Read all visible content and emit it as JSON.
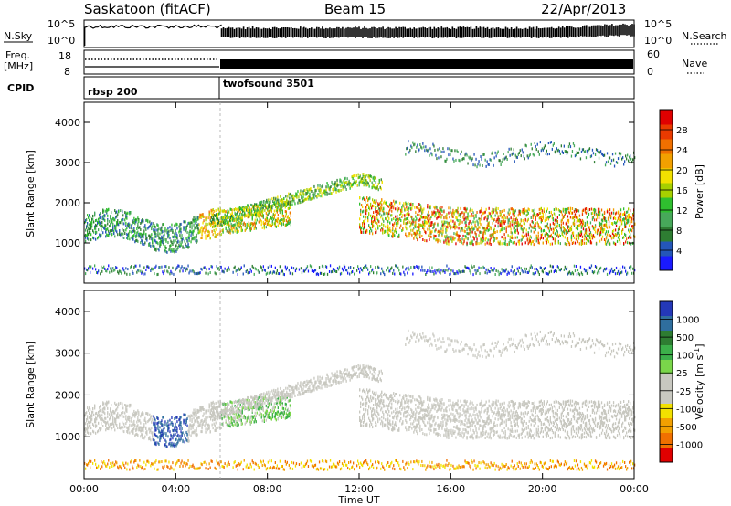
{
  "header": {
    "title": "Saskatoon (fitACF)",
    "beam": "Beam 15",
    "date": "22/Apr/2013"
  },
  "top_panel": {
    "nsky_label": "N.Sky",
    "nsky_top": "10^5",
    "nsky_bottom": "10^0",
    "nsearch_label": "N.Search",
    "nsearch_top": "10^5",
    "nsearch_bottom": "10^0",
    "freq_label": "Freq.",
    "freq_unit": "[MHz]",
    "freq_top": "18",
    "freq_bottom": "8",
    "nave_label": "Nave",
    "nave_top": "60",
    "nave_bottom": "0",
    "cpid_label": "CPID",
    "cpid_1": "rbsp 200",
    "cpid_2": "twofsound 3501"
  },
  "chart_data": [
    {
      "type": "heatmap",
      "name": "Power",
      "ylabel": "Slant Range [km]",
      "yticks": [
        "1000",
        "2000",
        "3000",
        "4000"
      ],
      "ylim": [
        0,
        4500
      ],
      "colorbar": {
        "label": "Power [dB]",
        "ticks": [
          "4",
          "8",
          "12",
          "16",
          "20",
          "24",
          "28"
        ],
        "colors": [
          "#1a1aff",
          "#2456b8",
          "#2e7d32",
          "#47a85a",
          "#2fbf2f",
          "#a6d000",
          "#f2e100",
          "#f2a000",
          "#f07000",
          "#ea3a00",
          "#e00000"
        ]
      }
    },
    {
      "type": "heatmap",
      "name": "Velocity",
      "ylabel": "Slant Range [km]",
      "yticks": [
        "1000",
        "2000",
        "3000",
        "4000"
      ],
      "ylim": [
        0,
        4500
      ],
      "xlabel": "Time UT",
      "xticks": [
        "00:00",
        "04:00",
        "08:00",
        "12:00",
        "16:00",
        "20:00",
        "00:00"
      ],
      "colorbar": {
        "label": "Velocity [m s",
        "label_sup": "-1",
        "label_end": "]",
        "ticks": [
          "1000",
          "500",
          "100",
          "25",
          "-25",
          "-100",
          "-500",
          "-1000"
        ],
        "colors": [
          "#2438b8",
          "#2f6e9e",
          "#2e7d32",
          "#3cb04a",
          "#7ad64a",
          "#c8c8c0",
          "#c8c8c0",
          "#f2e000",
          "#f2a000",
          "#f07000",
          "#e00000"
        ]
      }
    }
  ]
}
